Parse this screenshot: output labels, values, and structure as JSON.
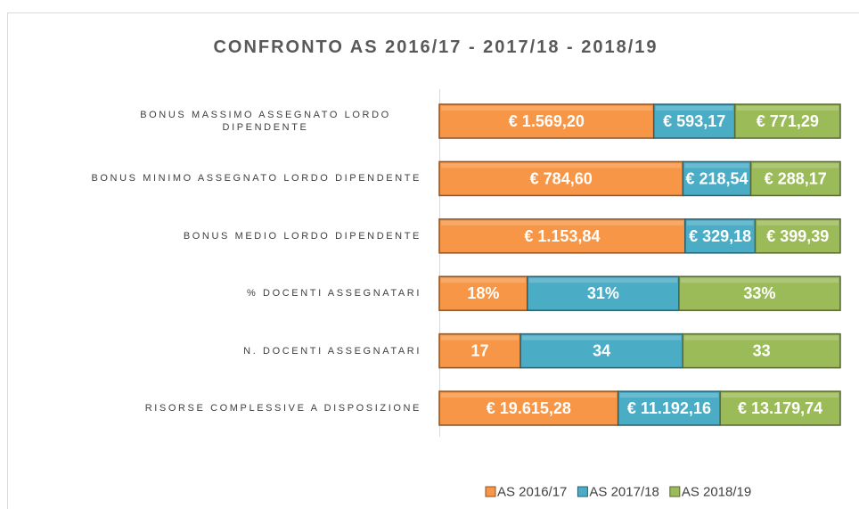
{
  "chart_data": {
    "type": "bar",
    "orientation": "horizontal",
    "stacked": "percent",
    "title": "CONFRONTO AS 2016/17 - 2017/18 - 2018/19",
    "categories": [
      "BONUS MASSIMO ASSEGNATO LORDO DIPENDENTE",
      "BONUS MINIMO ASSEGNATO LORDO DIPENDENTE",
      "BONUS MEDIO LORDO DIPENDENTE",
      "% DOCENTI ASSEGNATARI",
      "N. DOCENTI ASSEGNATARI",
      "RISORSE COMPLESSIVE A DISPOSIZIONE"
    ],
    "series": [
      {
        "name": "AS 2016/17",
        "color": "#f79646",
        "values": [
          1569.2,
          784.6,
          1153.84,
          18,
          17,
          19615.28
        ],
        "value_labels": [
          "€ 1.569,20",
          "€ 784,60",
          "€ 1.153,84",
          "18%",
          "17",
          "€ 19.615,28"
        ]
      },
      {
        "name": "AS 2017/18",
        "color": "#4bacc6",
        "values": [
          593.17,
          218.54,
          329.18,
          31,
          34,
          11192.16
        ],
        "value_labels": [
          "€ 593,17",
          "€ 218,54",
          "€ 329,18",
          "31%",
          "34",
          "€ 11.192,16"
        ]
      },
      {
        "name": "AS 2018/19",
        "color": "#9bbb59",
        "values": [
          771.29,
          288.17,
          399.39,
          33,
          33,
          13179.74
        ],
        "value_labels": [
          "€ 771,29",
          "€ 288,17",
          "€ 399,39",
          "33%",
          "33",
          "€ 13.179,74"
        ]
      }
    ],
    "legend": "bottom"
  }
}
